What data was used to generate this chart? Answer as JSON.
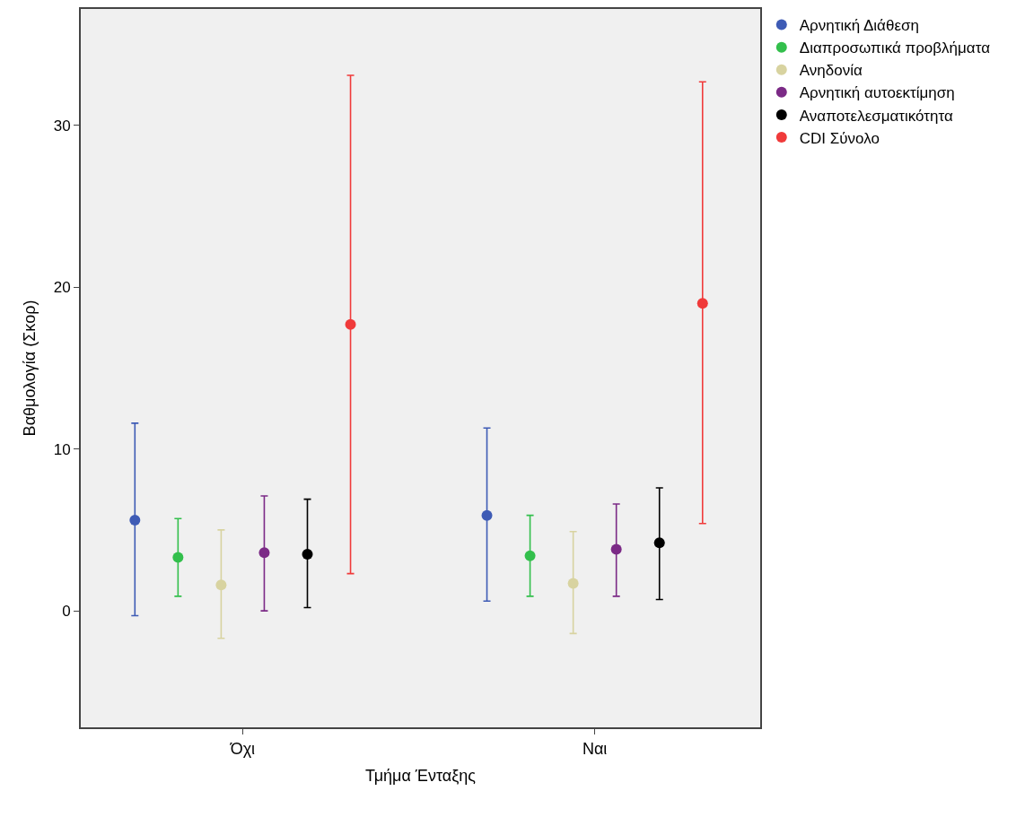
{
  "chart_data": {
    "type": "scatter",
    "xlabel": "Τμήμα Ένταξης",
    "ylabel": "Βαθμολογία (Σκορ)",
    "categories": [
      "Όχι",
      "Ναι"
    ],
    "ylim": [
      -7.2,
      37.2
    ],
    "yticks": [
      0,
      10,
      20,
      30
    ],
    "grid": false,
    "legend": "top right",
    "marker": "circle",
    "series": [
      {
        "name": "Αρνητική Διάθεση",
        "color": "#3e5bb5",
        "values": [
          5.6,
          5.9
        ],
        "errors": [
          [
            -0.3,
            11.6
          ],
          [
            0.6,
            11.3
          ]
        ]
      },
      {
        "name": "Διαπροσωπικά προβλήματα",
        "color": "#33bf4c",
        "values": [
          3.3,
          3.4
        ],
        "errors": [
          [
            0.9,
            5.7
          ],
          [
            0.9,
            5.9
          ]
        ]
      },
      {
        "name": "Ανηδονία",
        "color": "#d8d3a0",
        "values": [
          1.6,
          1.7
        ],
        "errors": [
          [
            -1.7,
            5.0
          ],
          [
            -1.4,
            4.9
          ]
        ]
      },
      {
        "name": "Αρνητική αυτοεκτίμηση",
        "color": "#7b2a86",
        "values": [
          3.6,
          3.8
        ],
        "errors": [
          [
            0.0,
            7.1
          ],
          [
            0.9,
            6.6
          ]
        ]
      },
      {
        "name": "Αναποτελεσματικότητα",
        "color": "#000000",
        "values": [
          3.5,
          4.2
        ],
        "errors": [
          [
            0.2,
            6.9
          ],
          [
            0.7,
            7.6
          ]
        ]
      },
      {
        "name": "CDI Σύνολο",
        "color": "#f03a3a",
        "values": [
          17.7,
          19.0
        ],
        "errors": [
          [
            2.3,
            33.1
          ],
          [
            5.4,
            32.7
          ]
        ]
      }
    ]
  }
}
